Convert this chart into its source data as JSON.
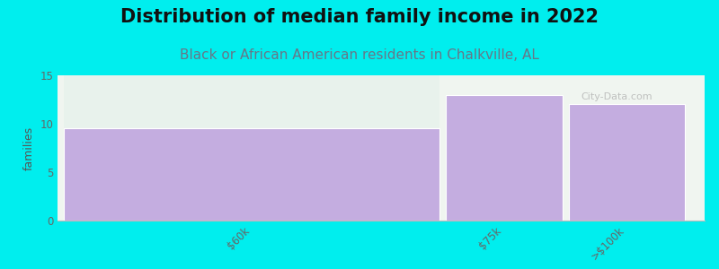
{
  "title": "Distribution of median family income in 2022",
  "subtitle": "Black or African American residents in Chalkville, AL",
  "categories": [
    "$60k",
    "$75k",
    ">$100k"
  ],
  "values": [
    9.5,
    13.0,
    12.0
  ],
  "bar_color": "#C4ADE0",
  "bar_edge_color": "#ffffff",
  "background_color": "#00EEEE",
  "plot_bg_color": "#f0f5f0",
  "plot_bg_color2": "#e8f0e8",
  "ylabel": "families",
  "ylim": [
    0,
    15
  ],
  "yticks": [
    0,
    5,
    10,
    15
  ],
  "title_fontsize": 15,
  "subtitle_fontsize": 11,
  "subtitle_color": "#667788",
  "watermark": "City-Data.com",
  "bar1_top_color": "#e8f2ec",
  "figsize": [
    8.0,
    3.0
  ],
  "dpi": 100
}
